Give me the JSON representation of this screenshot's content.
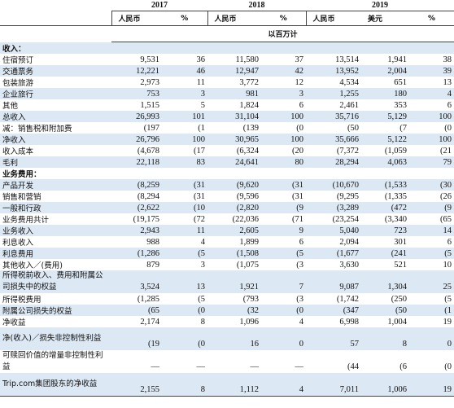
{
  "years": [
    "2017",
    "2018",
    "2019"
  ],
  "currency": {
    "rmb": "人民币",
    "pct": "%",
    "usd": "美元"
  },
  "unit": "以百万计",
  "rows": [
    {
      "label": "收入：",
      "section": true,
      "values": [
        "",
        "",
        "",
        "",
        "",
        "",
        ""
      ]
    },
    {
      "label": "住宿预订",
      "values": [
        "9,531",
        "36",
        "11,580",
        "37",
        "13,514",
        "1,941",
        "38"
      ]
    },
    {
      "label": "交通票务",
      "values": [
        "12,221",
        "46",
        "12,947",
        "42",
        "13,952",
        "2,004",
        "39"
      ]
    },
    {
      "label": "包装旅游",
      "values": [
        "2,973",
        "11",
        "3,772",
        "12",
        "4,534",
        "651",
        "13"
      ]
    },
    {
      "label": "企业旅行",
      "values": [
        "753",
        "3",
        "981",
        "3",
        "1,255",
        "180",
        "4"
      ]
    },
    {
      "label": "其他",
      "values": [
        "1,515",
        "5",
        "1,824",
        "6",
        "2,461",
        "353",
        "6"
      ]
    },
    {
      "label": "总收入",
      "values": [
        "26,993",
        "101",
        "31,104",
        "100",
        "35,716",
        "5,129",
        "100"
      ]
    },
    {
      "label": "减：销售税和附加费",
      "values": [
        "(197",
        "(1",
        "(139",
        "(0",
        "(50",
        "(7",
        "(0"
      ]
    },
    {
      "label": "净收入",
      "values": [
        "26,796",
        "100",
        "30,965",
        "100",
        "35,666",
        "5,122",
        "100"
      ]
    },
    {
      "label": "收入成本",
      "values": [
        "(4,678",
        "(17",
        "(6,324",
        "(20",
        "(7,372",
        "(1,059",
        "(21"
      ]
    },
    {
      "label": "毛利",
      "values": [
        "22,118",
        "83",
        "24,641",
        "80",
        "28,294",
        "4,063",
        "79"
      ]
    },
    {
      "label": "业务费用：",
      "section": true,
      "values": [
        "",
        "",
        "",
        "",
        "",
        "",
        ""
      ]
    },
    {
      "label": "产品开发",
      "values": [
        "(8,259",
        "(31",
        "(9,620",
        "(31",
        "(10,670",
        "(1,533",
        "(30"
      ]
    },
    {
      "label": "销售和营销",
      "values": [
        "(8,294",
        "(31",
        "(9,596",
        "(31",
        "(9,295",
        "(1,335",
        "(26"
      ]
    },
    {
      "label": "一般和行政",
      "values": [
        "(2,622",
        "(10",
        "(2,820",
        "(9",
        "(3,289",
        "(472",
        "(9"
      ]
    },
    {
      "label": "业务费用共计",
      "values": [
        "(19,175",
        "(72",
        "(22,036",
        "(71",
        "(23,254",
        "(3,340",
        "(65"
      ]
    },
    {
      "label": "业务收入",
      "values": [
        "2,943",
        "11",
        "2,605",
        "9",
        "5,040",
        "723",
        "14"
      ]
    },
    {
      "label": "利息收入",
      "values": [
        "988",
        "4",
        "1,899",
        "6",
        "2,094",
        "301",
        "6"
      ]
    },
    {
      "label": "利息费用",
      "values": [
        "(1,286",
        "(5",
        "(1,508",
        "(5",
        "(1,677",
        "(241",
        "(5"
      ]
    },
    {
      "label": "其他收入／(费用)",
      "values": [
        "879",
        "3",
        "(1,075",
        "(3",
        "3,630",
        "521",
        "10"
      ]
    },
    {
      "label": "所得税前收入、费用和附属公司损失中的权益",
      "tall": true,
      "values": [
        "3,524",
        "13",
        "1,921",
        "7",
        "9,087",
        "1,304",
        "25"
      ]
    },
    {
      "label": "所得税费用",
      "values": [
        "(1,285",
        "(5",
        "(793",
        "(3",
        "(1,742",
        "(250",
        "(5"
      ]
    },
    {
      "label": "附属公司损失的权益",
      "values": [
        "(65",
        "(0",
        "(32",
        "(0",
        "(347",
        "(50",
        "(1"
      ]
    },
    {
      "label": "净收益",
      "values": [
        "2,174",
        "8",
        "1,096",
        "4",
        "6,998",
        "1,004",
        "19"
      ]
    },
    {
      "label": "净(收入)／损失非控制性利益",
      "tall": true,
      "values": [
        "(19",
        "(0",
        "16",
        "0",
        "57",
        "8",
        "0"
      ]
    },
    {
      "label": "可赎回价值的增量非控制性利益",
      "tall": true,
      "values": [
        "—",
        "—",
        "—",
        "—",
        "(44",
        "(6",
        "(0"
      ]
    },
    {
      "label": "Trip.com集团股东的净收益",
      "tall": true,
      "values": [
        "2,155",
        "8",
        "1,112",
        "4",
        "7,011",
        "1,006",
        "19"
      ]
    }
  ]
}
